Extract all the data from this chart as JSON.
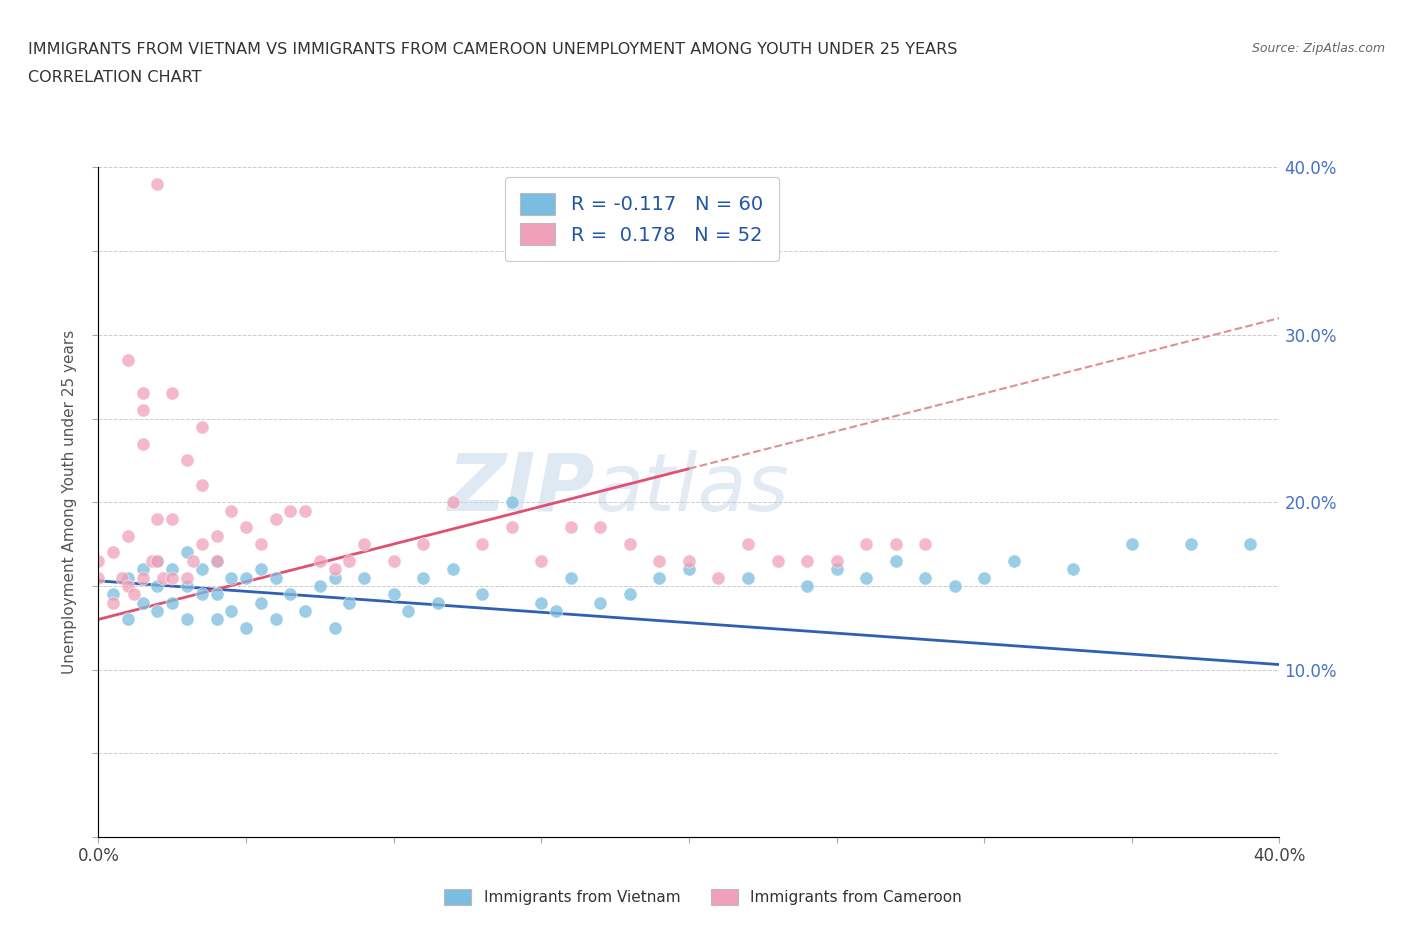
{
  "title_line1": "IMMIGRANTS FROM VIETNAM VS IMMIGRANTS FROM CAMEROON UNEMPLOYMENT AMONG YOUTH UNDER 25 YEARS",
  "title_line2": "CORRELATION CHART",
  "source": "Source: ZipAtlas.com",
  "ylabel": "Unemployment Among Youth under 25 years",
  "watermark_zip": "ZIP",
  "watermark_atlas": "atlas",
  "legend_vietnam": "Immigrants from Vietnam",
  "legend_cameroon": "Immigrants from Cameroon",
  "r_vietnam": -0.117,
  "n_vietnam": 60,
  "r_cameroon": 0.178,
  "n_cameroon": 52,
  "xlim": [
    0.0,
    0.4
  ],
  "ylim": [
    0.0,
    0.4
  ],
  "color_vietnam": "#7bbde0",
  "color_cameroon": "#f0a0b8",
  "trendline_vietnam_color": "#3060b0",
  "trendline_cameroon_color": "#e05070",
  "trendline_cameroon_dashed_color": "#e09090",
  "vietnam_x": [
    0.005,
    0.01,
    0.01,
    0.015,
    0.015,
    0.02,
    0.02,
    0.02,
    0.025,
    0.025,
    0.03,
    0.03,
    0.03,
    0.035,
    0.035,
    0.04,
    0.04,
    0.04,
    0.045,
    0.045,
    0.05,
    0.05,
    0.055,
    0.055,
    0.06,
    0.06,
    0.065,
    0.07,
    0.075,
    0.08,
    0.08,
    0.085,
    0.09,
    0.1,
    0.105,
    0.11,
    0.115,
    0.12,
    0.13,
    0.14,
    0.15,
    0.155,
    0.16,
    0.17,
    0.18,
    0.19,
    0.2,
    0.22,
    0.24,
    0.25,
    0.26,
    0.27,
    0.28,
    0.29,
    0.3,
    0.31,
    0.33,
    0.35,
    0.37,
    0.39
  ],
  "vietnam_y": [
    0.145,
    0.13,
    0.155,
    0.14,
    0.16,
    0.135,
    0.15,
    0.165,
    0.14,
    0.16,
    0.13,
    0.15,
    0.17,
    0.145,
    0.16,
    0.13,
    0.145,
    0.165,
    0.135,
    0.155,
    0.125,
    0.155,
    0.14,
    0.16,
    0.13,
    0.155,
    0.145,
    0.135,
    0.15,
    0.125,
    0.155,
    0.14,
    0.155,
    0.145,
    0.135,
    0.155,
    0.14,
    0.16,
    0.145,
    0.2,
    0.14,
    0.135,
    0.155,
    0.14,
    0.145,
    0.155,
    0.16,
    0.155,
    0.15,
    0.16,
    0.155,
    0.165,
    0.155,
    0.15,
    0.155,
    0.165,
    0.16,
    0.175,
    0.175,
    0.175
  ],
  "cameroon_x": [
    0.0,
    0.0,
    0.005,
    0.005,
    0.008,
    0.01,
    0.01,
    0.012,
    0.015,
    0.015,
    0.018,
    0.02,
    0.02,
    0.022,
    0.025,
    0.025,
    0.03,
    0.03,
    0.032,
    0.035,
    0.035,
    0.04,
    0.04,
    0.045,
    0.05,
    0.055,
    0.06,
    0.065,
    0.07,
    0.075,
    0.08,
    0.085,
    0.09,
    0.1,
    0.11,
    0.12,
    0.13,
    0.14,
    0.15,
    0.16,
    0.17,
    0.18,
    0.19,
    0.2,
    0.21,
    0.22,
    0.23,
    0.24,
    0.25,
    0.26,
    0.27,
    0.28
  ],
  "cameroon_y": [
    0.155,
    0.165,
    0.14,
    0.17,
    0.155,
    0.15,
    0.18,
    0.145,
    0.155,
    0.235,
    0.165,
    0.165,
    0.19,
    0.155,
    0.19,
    0.155,
    0.155,
    0.225,
    0.165,
    0.21,
    0.175,
    0.18,
    0.165,
    0.195,
    0.185,
    0.175,
    0.19,
    0.195,
    0.195,
    0.165,
    0.16,
    0.165,
    0.175,
    0.165,
    0.175,
    0.2,
    0.175,
    0.185,
    0.165,
    0.185,
    0.185,
    0.175,
    0.165,
    0.165,
    0.155,
    0.175,
    0.165,
    0.165,
    0.165,
    0.175,
    0.175,
    0.175
  ],
  "cameroon_high_x": [
    0.01,
    0.015,
    0.015,
    0.02,
    0.025,
    0.035
  ],
  "cameroon_high_y": [
    0.285,
    0.255,
    0.265,
    0.39,
    0.265,
    0.245
  ]
}
